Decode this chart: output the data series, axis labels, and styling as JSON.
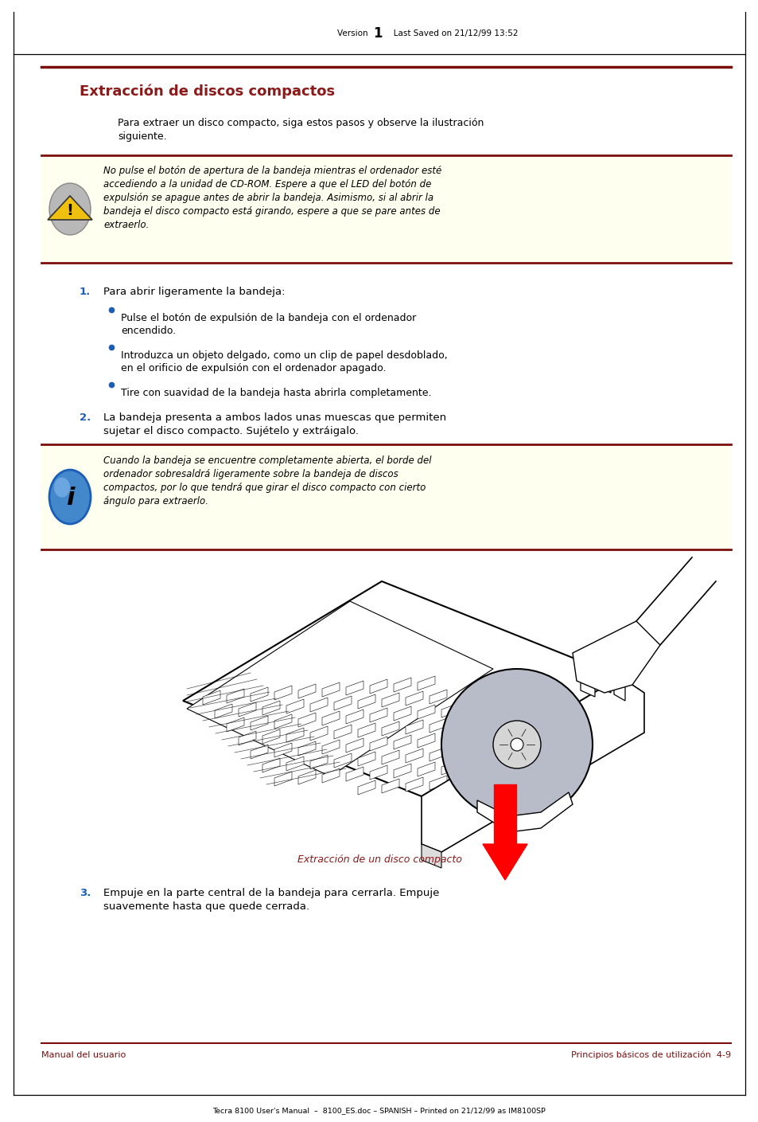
{
  "page_width": 9.54,
  "page_height": 14.09,
  "bg_color": "#ffffff",
  "header_text_left": "Version  ",
  "header_text_num": "1",
  "header_text_right": "   Last Saved on 21/12/99 13:52",
  "footer_bottom_text": "Tecra 8100 User's Manual  –  8100_ES.doc – SPANISH – Printed on 21/12/99 as IM8100SP",
  "footer_left_text": "Manual del usuario",
  "footer_right_text": "Principios básicos de utilización  4-9",
  "dark_red": "#7b0d0d",
  "blue_number": "#1a5eb8",
  "title": "Extracción de discos compactos",
  "title_color": "#8b1a1a",
  "intro_line1": "Para extraer un disco compacto, siga estos pasos y observe la ilustración",
  "intro_line2": "siguiente.",
  "warning_box_bg": "#fffff0",
  "warning_line1": "No pulse el botón de apertura de la bandeja mientras el ordenador esté",
  "warning_line2": "accediendo a la unidad de CD-ROM. Espere a que el LED del botón de",
  "warning_line3": "expulsión se apague antes de abrir la bandeja. Asimismo, si al abrir la",
  "warning_line4": "bandeja el disco compacto está girando, espere a que se pare antes de",
  "warning_line5": "extraerlo.",
  "step1_num": "1.",
  "step1_text": "Para abrir ligeramente la bandeja:",
  "bullet1_line1": "Pulse el botón de expulsión de la bandeja con el ordenador",
  "bullet1_line2": "encendido.",
  "bullet2_line1": "Introduzca un objeto delgado, como un clip de papel desdoblado,",
  "bullet2_line2": "en el orificio de expulsión con el ordenador apagado.",
  "bullet3": "Tire con suavidad de la bandeja hasta abrirla completamente.",
  "step2_num": "2.",
  "step2_line1": "La bandeja presenta a ambos lados unas muescas que permiten",
  "step2_line2": "sujetar el disco compacto. Sujételo y extráigalo.",
  "info_line1": "Cuando la bandeja se encuentre completamente abierta, el borde del",
  "info_line2": "ordenador sobresaldrá ligeramente sobre la bandeja de discos",
  "info_line3": "compactos, por lo que tendrá que girar el disco compacto con cierto",
  "info_line4": "ángulo para extraerlo.",
  "caption_text": "Extracción de un disco compacto",
  "step3_num": "3.",
  "step3_line1": "Empuje en la parte central de la bandeja para cerrarla. Empuje",
  "step3_line2": "suavemente hasta que quede cerrada."
}
